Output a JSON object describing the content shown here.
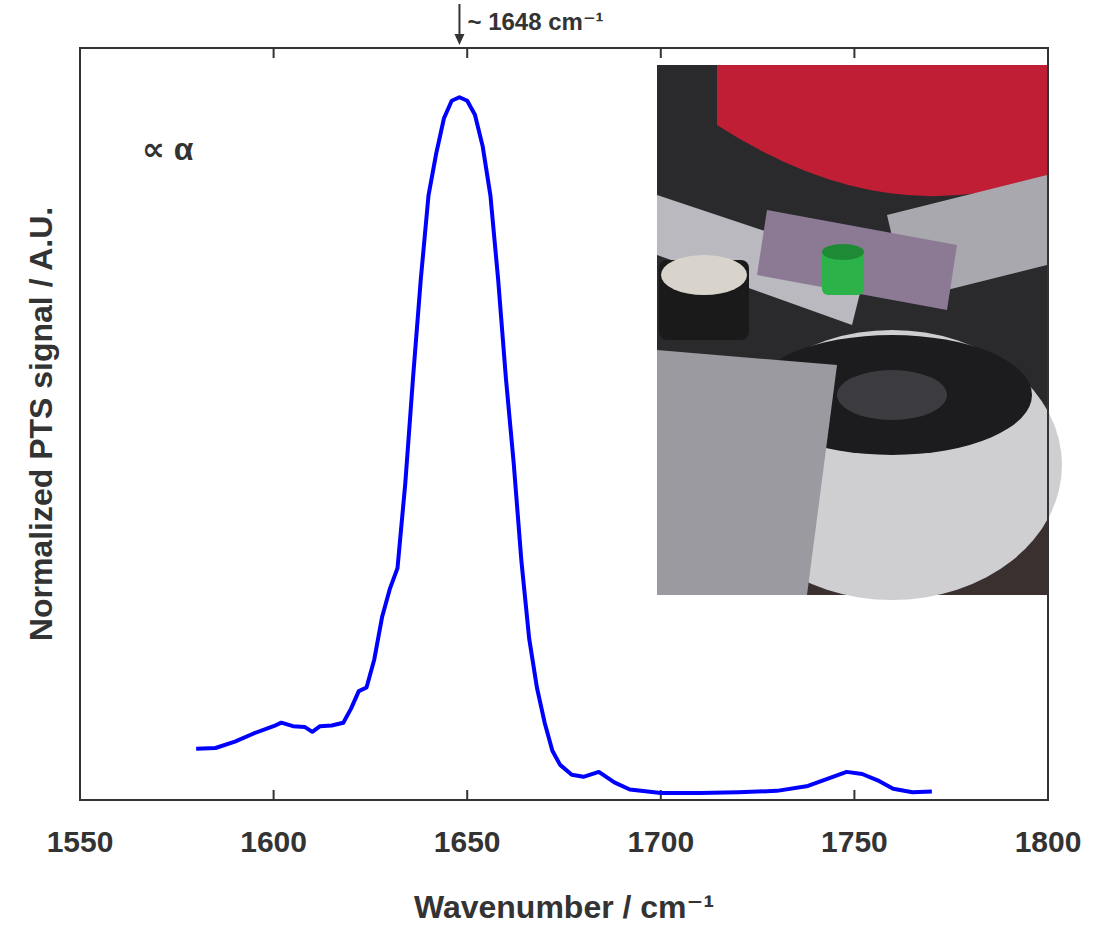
{
  "chart_data": {
    "type": "line",
    "x_label": "Wavenumber / cm⁻¹",
    "y_label": "Normalized PTS signal / A.U.",
    "annotations": [
      {
        "text": "~ 1648 cm⁻¹",
        "x": 1648
      },
      {
        "text": "∝ α"
      }
    ],
    "x": [
      1580,
      1585,
      1590,
      1595,
      1600,
      1602,
      1605,
      1608,
      1610,
      1612,
      1615,
      1618,
      1620,
      1622,
      1624,
      1626,
      1628,
      1630,
      1632,
      1634,
      1636,
      1638,
      1640,
      1642,
      1644,
      1646,
      1648,
      1650,
      1652,
      1654,
      1656,
      1658,
      1660,
      1662,
      1664,
      1666,
      1668,
      1670,
      1672,
      1674,
      1677,
      1680,
      1684,
      1688,
      1692,
      1700,
      1710,
      1720,
      1730,
      1738,
      1743,
      1748,
      1752,
      1756,
      1760,
      1765,
      1770
    ],
    "values": [
      0.073,
      0.074,
      0.083,
      0.095,
      0.105,
      0.11,
      0.105,
      0.104,
      0.097,
      0.105,
      0.106,
      0.11,
      0.13,
      0.155,
      0.16,
      0.2,
      0.26,
      0.3,
      0.33,
      0.45,
      0.6,
      0.74,
      0.86,
      0.92,
      0.97,
      0.995,
      1.0,
      0.995,
      0.975,
      0.93,
      0.86,
      0.74,
      0.6,
      0.48,
      0.34,
      0.23,
      0.16,
      0.11,
      0.07,
      0.05,
      0.036,
      0.033,
      0.04,
      0.025,
      0.015,
      0.01,
      0.01,
      0.011,
      0.013,
      0.02,
      0.03,
      0.04,
      0.037,
      0.028,
      0.016,
      0.011,
      0.012
    ],
    "color": "#0000ff",
    "xlim": [
      1550,
      1800
    ],
    "xticks": [
      1550,
      1600,
      1650,
      1700,
      1750,
      1800
    ],
    "ylim": [
      0,
      1.07
    ],
    "tick_labels": "x",
    "grid": false
  }
}
